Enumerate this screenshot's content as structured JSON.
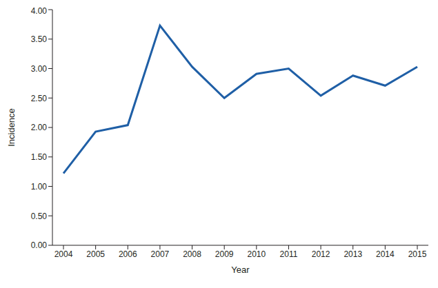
{
  "chart_data": {
    "type": "line",
    "x_label": "Year",
    "y_label": "Incidence",
    "categories": [
      "2004",
      "2005",
      "2006",
      "2007",
      "2008",
      "2009",
      "2010",
      "2011",
      "2012",
      "2013",
      "2014",
      "2015"
    ],
    "values": [
      1.22,
      1.93,
      2.04,
      3.73,
      3.03,
      2.5,
      2.91,
      3.0,
      2.54,
      2.88,
      2.71,
      3.03
    ],
    "color": "#1f5fa6",
    "ylim": [
      0,
      4
    ],
    "yticks": [
      {
        "value": 0,
        "label": "0.00"
      },
      {
        "value": 0.5,
        "label": "0.50"
      },
      {
        "value": 1,
        "label": "1.00"
      },
      {
        "value": 1.5,
        "label": "1.50"
      },
      {
        "value": 2,
        "label": "2.00"
      },
      {
        "value": 2.5,
        "label": "2.50"
      },
      {
        "value": 3,
        "label": "3.00"
      },
      {
        "value": 3.5,
        "label": "3.50"
      },
      {
        "value": 4,
        "label": "4.00"
      }
    ],
    "grid": false,
    "marker": "none",
    "line_style": "solid"
  }
}
